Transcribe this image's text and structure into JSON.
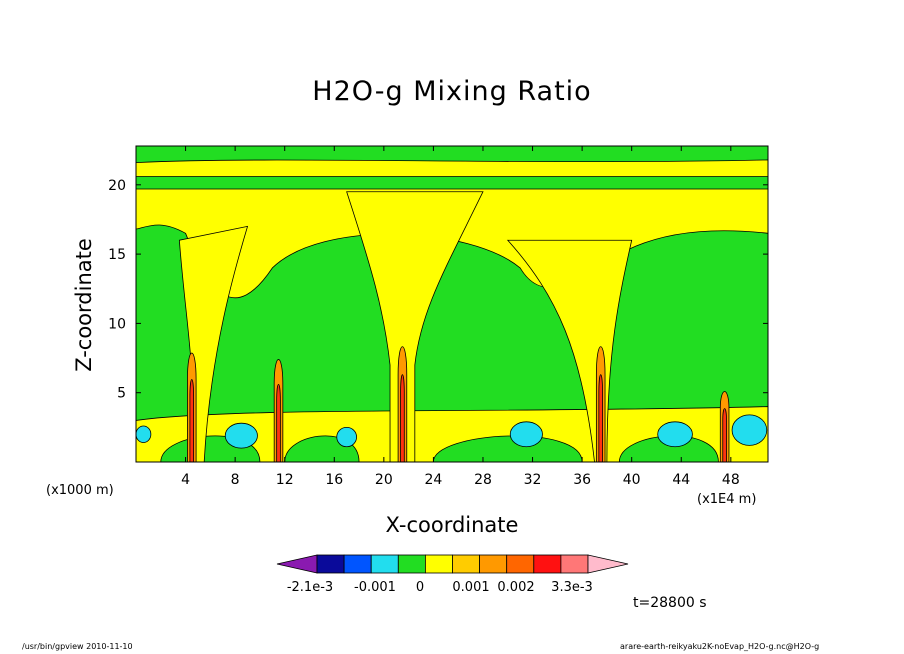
{
  "chart_data": {
    "type": "heatmap",
    "title": "H2O-g Mixing Ratio",
    "xlabel": "X-coordinate",
    "ylabel": "Z-coordinate",
    "x_unit_left": "(x1000 m)",
    "x_unit_right": "(x1E4 m)",
    "xlim": [
      0,
      51
    ],
    "ylim": [
      0,
      22.8
    ],
    "x_ticks": [
      4,
      8,
      12,
      16,
      20,
      24,
      28,
      32,
      36,
      40,
      44,
      48
    ],
    "y_ticks": [
      5,
      10,
      15,
      20
    ],
    "colorbar": {
      "colors": [
        "#8a1ab0",
        "#0a0a9a",
        "#0055ff",
        "#22ddee",
        "#22dd22",
        "#ffff00",
        "#ffcc00",
        "#ff9900",
        "#ff6600",
        "#ff1111",
        "#ff7777",
        "#ffbbcc"
      ],
      "labels": [
        "-2.1e-3",
        "-0.001",
        "0",
        "0.001",
        "0.002",
        "3.3e-3"
      ],
      "extend": "both"
    },
    "background_regions": {
      "green": "#22dd22",
      "yellow": "#ffff00",
      "cyan": "#22ddee",
      "orange": "#ff9900",
      "red": "#ff3311"
    },
    "columns_x": [
      4.5,
      11.5,
      21.5,
      37.5,
      47.5
    ],
    "time_label": "t=28800 s"
  },
  "footer": {
    "left": "/usr/bin/gpview   2010-11-10",
    "right": "arare-earth-reikyaku2K-noEvap_H2O-g.nc@H2O-g"
  }
}
